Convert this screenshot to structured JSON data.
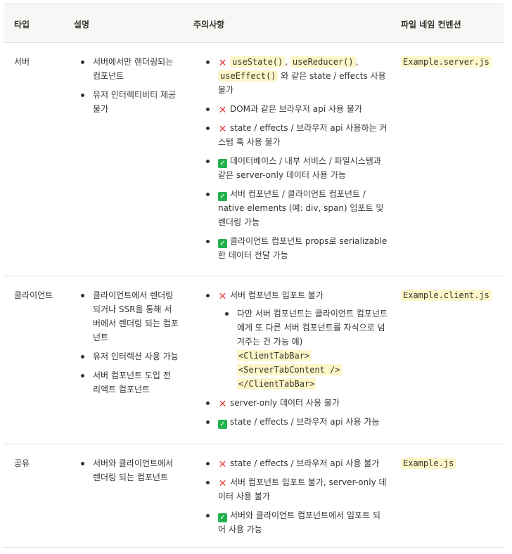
{
  "header": {
    "type": "타입",
    "desc": "설명",
    "caution": "주의사항",
    "naming": "파일 네임 컨벤션"
  },
  "rows": [
    {
      "type": "서버",
      "desc": [
        "서버에서만 렌더링되는 컴포넌트",
        "유저 인터렉티비티 제공 불가"
      ],
      "caution": [
        {
          "mark": "x",
          "codes": [
            "useState()",
            "useReducer()",
            "useEffect()"
          ],
          "text": "와 같은 state / effects 사용 불가"
        },
        {
          "mark": "x",
          "text": "DOM과 같은 브라우저 api 사용 불가"
        },
        {
          "mark": "x",
          "text": "state / effects / 브라우저 api 사용하는 커스텀 훅 사용 불가"
        },
        {
          "mark": "ok",
          "text": "데이터베이스 / 내부 서비스 / 파일시스템과 같은 server-only 데이터 사용 가능"
        },
        {
          "mark": "ok",
          "text": "서버 컴포넌트 / 클라이언트 컴포넌트 / native elements (예: div, span) 임포트 및 렌더링 가능"
        },
        {
          "mark": "ok",
          "text": "클라이언트 컴포넌트 props로 serializable한 데이터 전달 가능"
        }
      ],
      "naming": "Example.server.js"
    },
    {
      "type": "클라이언트",
      "desc": [
        "클라이언트에서 렌더링 되거나 SSR을 통해 서버에서 렌더링 되는 컴포넌트",
        "유저 인터렉션 사용 가능",
        "서버 컴포넌트 도입 전 리액트 컴포넌트"
      ],
      "caution": [
        {
          "mark": "x",
          "text": "서버 컴포넌트 임포트 불가"
        },
        {
          "mark": "x",
          "text": "server-only 데이터 사용 불가"
        },
        {
          "mark": "ok",
          "text": "state / effects / 브라우저 api 사용 가능"
        }
      ],
      "sub": {
        "text": "다만 서버 컴포넌트는 클라이언트 컴포넌트에게 또 다른 서버 컴포넌트를 자식으로 넘겨주는 건 가능 예)",
        "code": [
          "<ClientTabBar>",
          "<ServerTabContent />",
          "</ClientTabBar>"
        ]
      },
      "naming": "Example.client.js"
    },
    {
      "type": "공유",
      "desc": [
        "서버와 클라이언트에서 렌더링 되는 컴포넌트"
      ],
      "caution": [
        {
          "mark": "x",
          "text": "state / effects / 브라우저 api 사용 불가"
        },
        {
          "mark": "x",
          "text": "서버 컴포넌트 임포트 불가, server-only 데이터 사용 불가"
        },
        {
          "mark": "ok",
          "text": "서버와 클라이언트 컴포넌트에서 임포트 되어 사용 가능"
        }
      ],
      "naming": "Example.js"
    }
  ],
  "marks": {
    "x": "✕",
    "ok": "✓"
  }
}
